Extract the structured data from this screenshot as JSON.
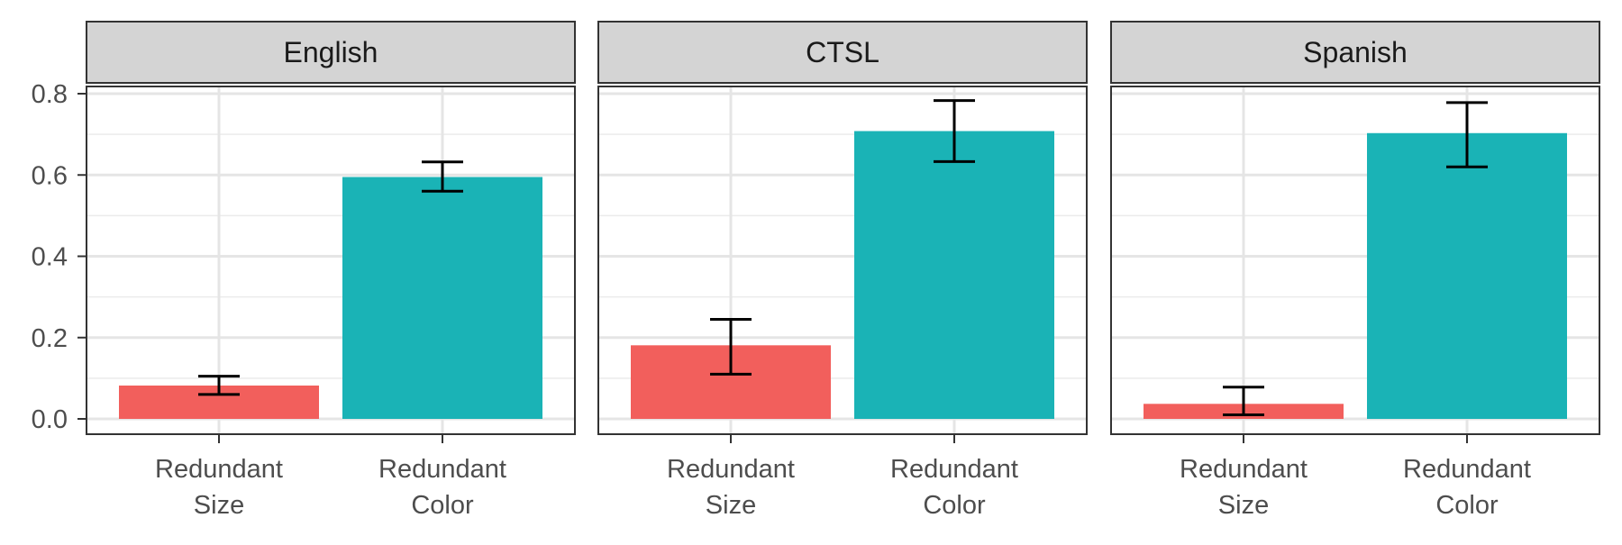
{
  "chart_data": {
    "type": "bar",
    "title": "",
    "xlabel": "",
    "ylabel": "",
    "ylim": [
      0,
      0.8
    ],
    "yticks": [
      "0.0",
      "0.2",
      "0.4",
      "0.6",
      "0.8"
    ],
    "categories": [
      "Redundant\nSize",
      "Redundant\nColor"
    ],
    "colors": [
      "#F25F5C",
      "#1AB3B6"
    ],
    "grid": true,
    "legend": "none",
    "panels": [
      {
        "label": "English",
        "values": [
          0.082,
          0.595
        ],
        "error_low": [
          0.06,
          0.56
        ],
        "error_high": [
          0.105,
          0.632
        ]
      },
      {
        "label": "CTSL",
        "values": [
          0.181,
          0.708
        ],
        "error_low": [
          0.11,
          0.633
        ],
        "error_high": [
          0.245,
          0.783
        ]
      },
      {
        "label": "Spanish",
        "values": [
          0.037,
          0.703
        ],
        "error_low": [
          0.01,
          0.62
        ],
        "error_high": [
          0.078,
          0.778
        ]
      }
    ]
  }
}
